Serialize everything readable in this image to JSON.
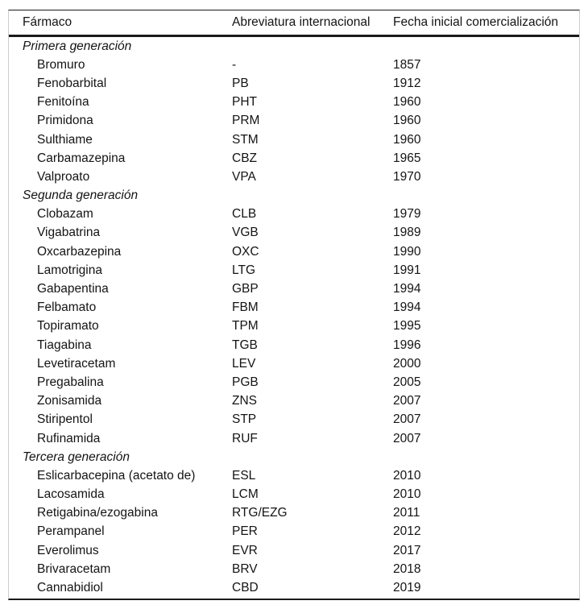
{
  "table": {
    "columns": [
      "Fármaco",
      "Abreviatura internacional",
      "Fecha inicial comercialización"
    ],
    "sections": [
      {
        "label": "Primera generación",
        "rows": [
          [
            "Bromuro",
            "-",
            "1857"
          ],
          [
            "Fenobarbital",
            "PB",
            "1912"
          ],
          [
            "Fenitoína",
            "PHT",
            "1960"
          ],
          [
            "Primidona",
            "PRM",
            "1960"
          ],
          [
            "Sulthiame",
            "STM",
            "1960"
          ],
          [
            "Carbamazepina",
            "CBZ",
            "1965"
          ],
          [
            "Valproato",
            "VPA",
            "1970"
          ]
        ]
      },
      {
        "label": "Segunda generación",
        "rows": [
          [
            "Clobazam",
            "CLB",
            "1979"
          ],
          [
            "Vigabatrina",
            "VGB",
            "1989"
          ],
          [
            "Oxcarbazepina",
            "OXC",
            "1990"
          ],
          [
            "Lamotrigina",
            "LTG",
            "1991"
          ],
          [
            "Gabapentina",
            "GBP",
            "1994"
          ],
          [
            "Felbamato",
            "FBM",
            "1994"
          ],
          [
            "Topiramato",
            "TPM",
            "1995"
          ],
          [
            "Tiagabina",
            "TGB",
            "1996"
          ],
          [
            "Levetiracetam",
            "LEV",
            "2000"
          ],
          [
            "Pregabalina",
            "PGB",
            "2005"
          ],
          [
            "Zonisamida",
            "ZNS",
            "2007"
          ],
          [
            "Stiripentol",
            "STP",
            "2007"
          ],
          [
            "Rufinamida",
            "RUF",
            "2007"
          ]
        ]
      },
      {
        "label": "Tercera generación",
        "rows": [
          [
            "Eslicarbacepina (acetato de)",
            "ESL",
            "2010"
          ],
          [
            "Lacosamida",
            "LCM",
            "2010"
          ],
          [
            "Retigabina/ezogabina",
            "RTG/EZG",
            "2011"
          ],
          [
            "Perampanel",
            "PER",
            "2012"
          ],
          [
            "Everolimus",
            "EVR",
            "2017"
          ],
          [
            "Brivaracetam",
            "BRV",
            "2018"
          ],
          [
            "Cannabidiol",
            "CBD",
            "2019"
          ]
        ]
      }
    ],
    "colors": {
      "rule": "#1a1a1a",
      "side_border": "#cccccc",
      "text": "#141414"
    }
  }
}
